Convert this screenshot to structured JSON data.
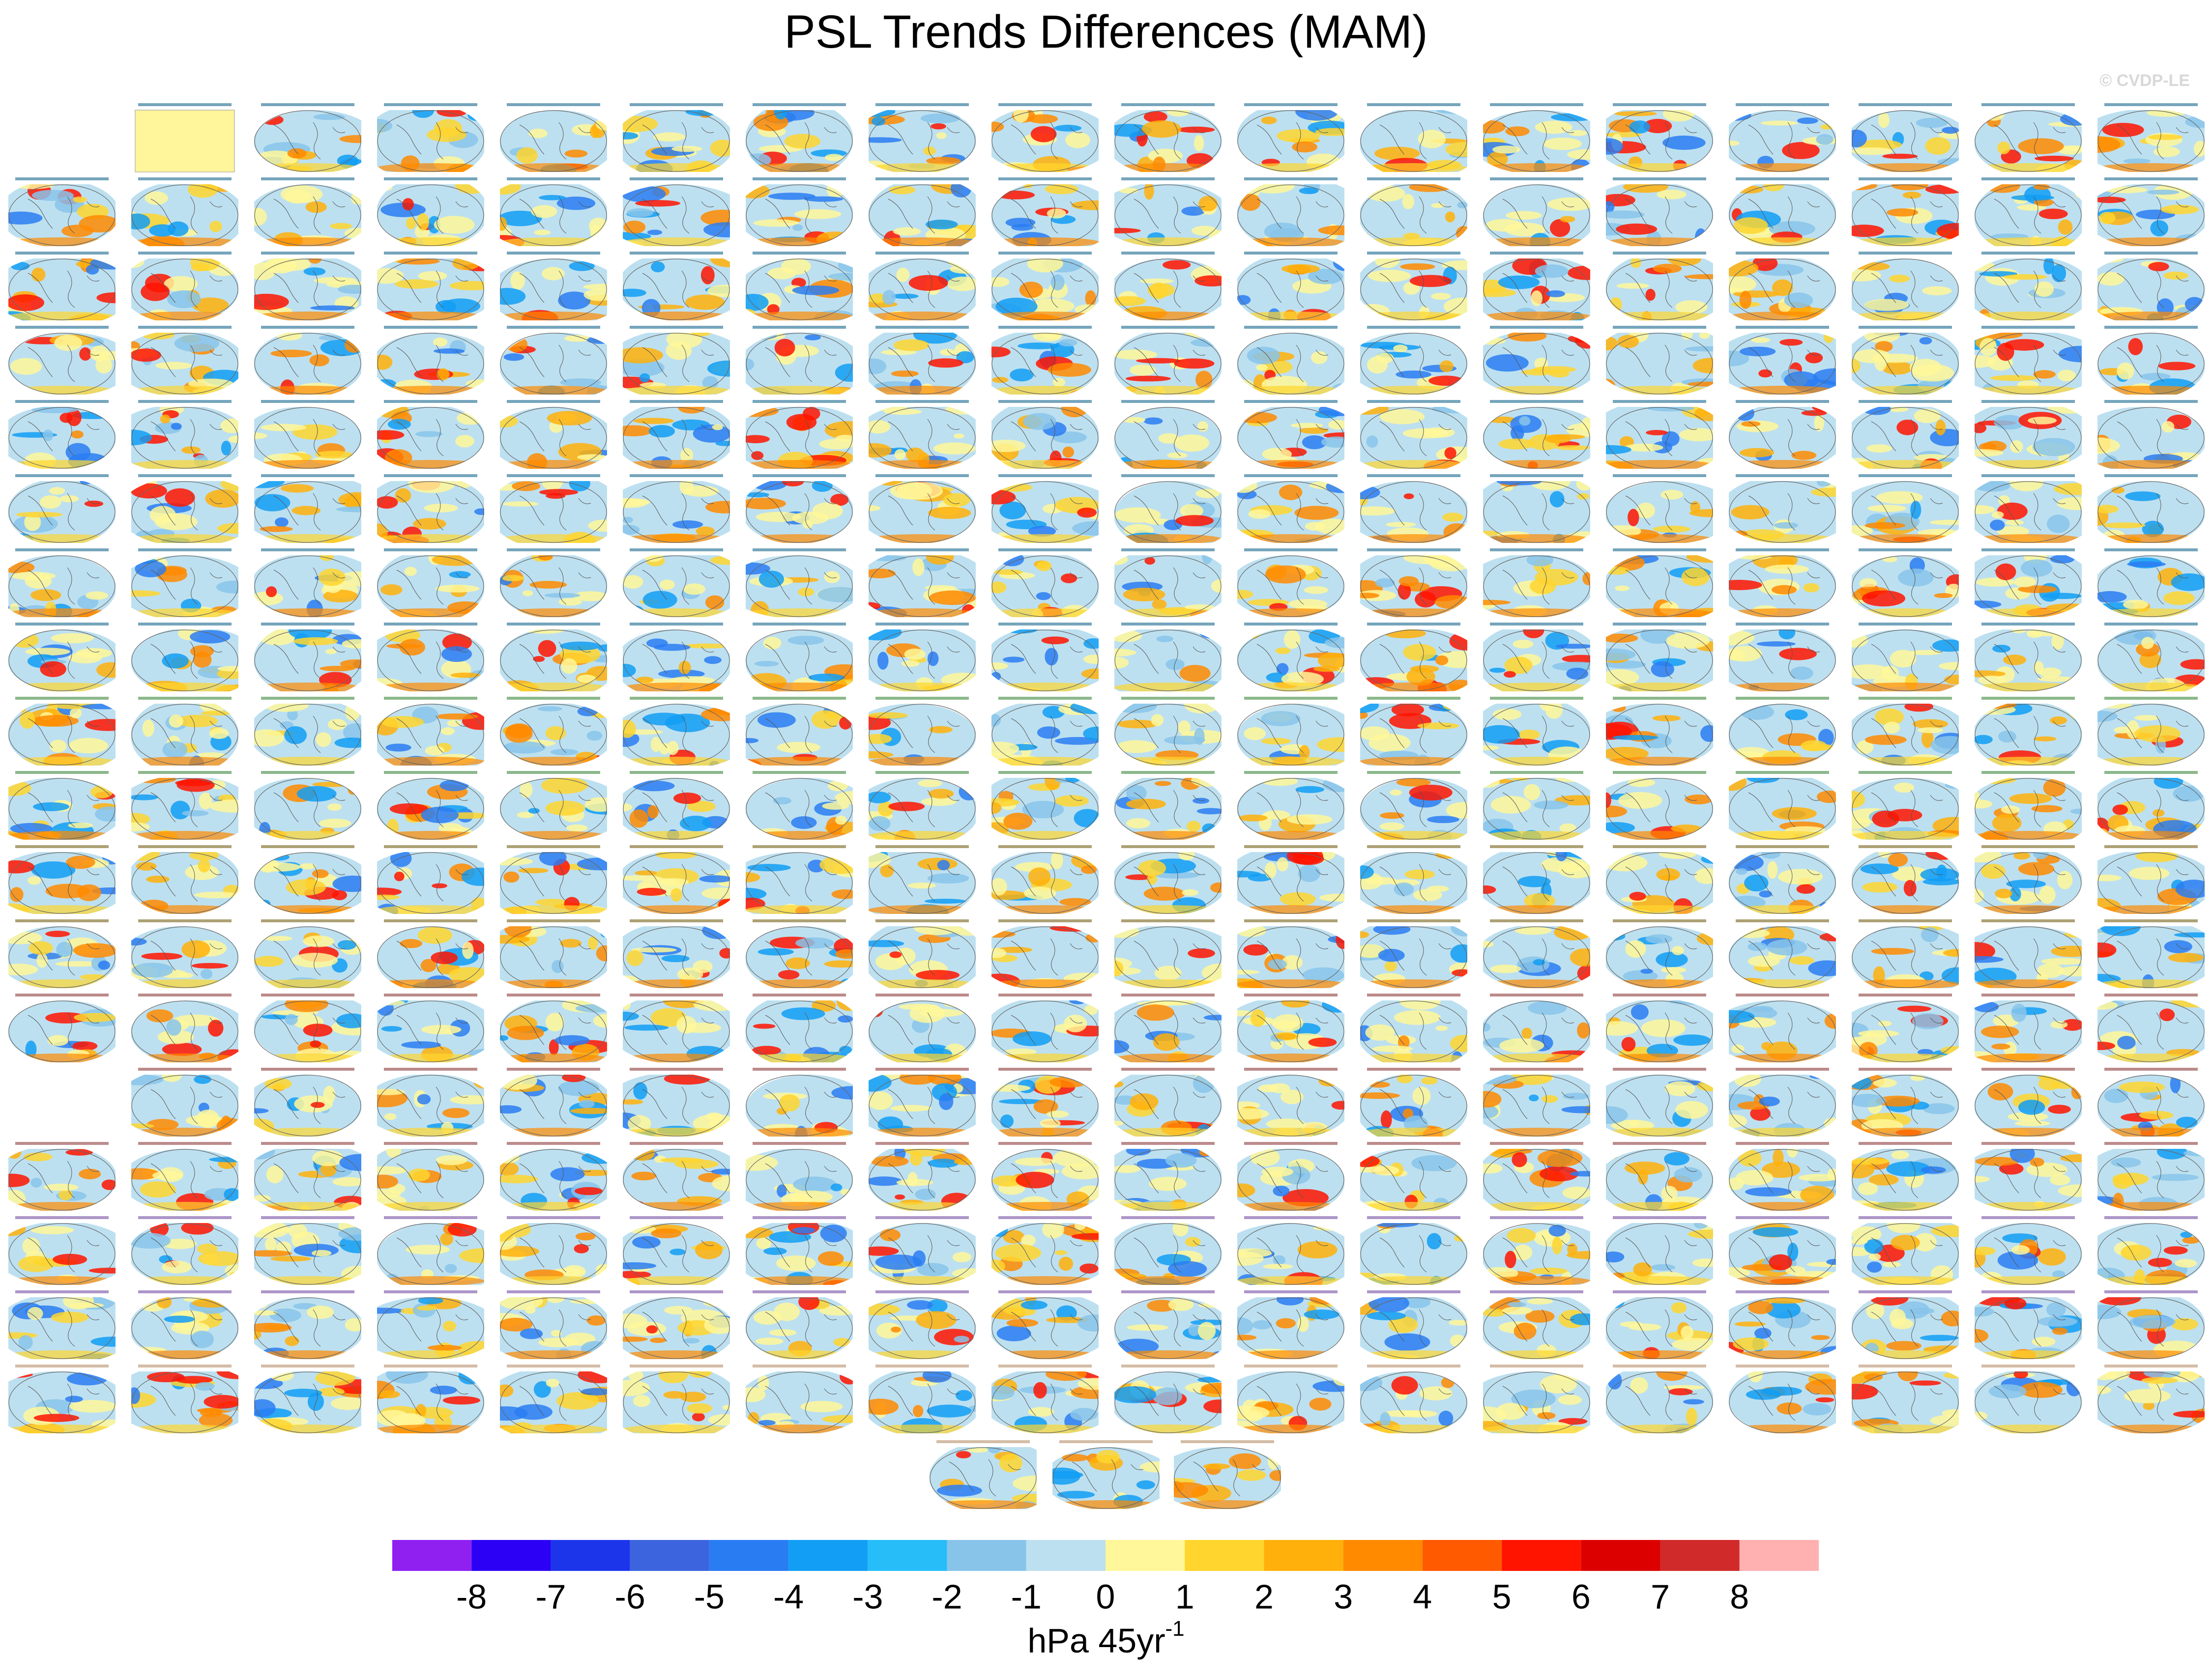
{
  "header": {
    "title": "PSL Trends Differences (MAM)",
    "watermark": "© CVDP-LE"
  },
  "colorbar": {
    "colors": [
      "#8f20f0",
      "#2c00f5",
      "#1c35eb",
      "#3c64de",
      "#2a7cf2",
      "#129ef5",
      "#26bdf8",
      "#88c4ea",
      "#bde0f0",
      "#fff799",
      "#ffd52e",
      "#ffb00a",
      "#ff8a00",
      "#ff5a00",
      "#ff1400",
      "#dc0000",
      "#d02a2a",
      "#ffb0b0"
    ],
    "ticks": [
      -8,
      -7,
      -6,
      -5,
      -4,
      -3,
      -2,
      -1,
      0,
      1,
      2,
      3,
      4,
      5,
      6,
      7,
      8
    ],
    "label": {
      "text": "hPa 45yr",
      "superscript": "-1"
    }
  }
}
